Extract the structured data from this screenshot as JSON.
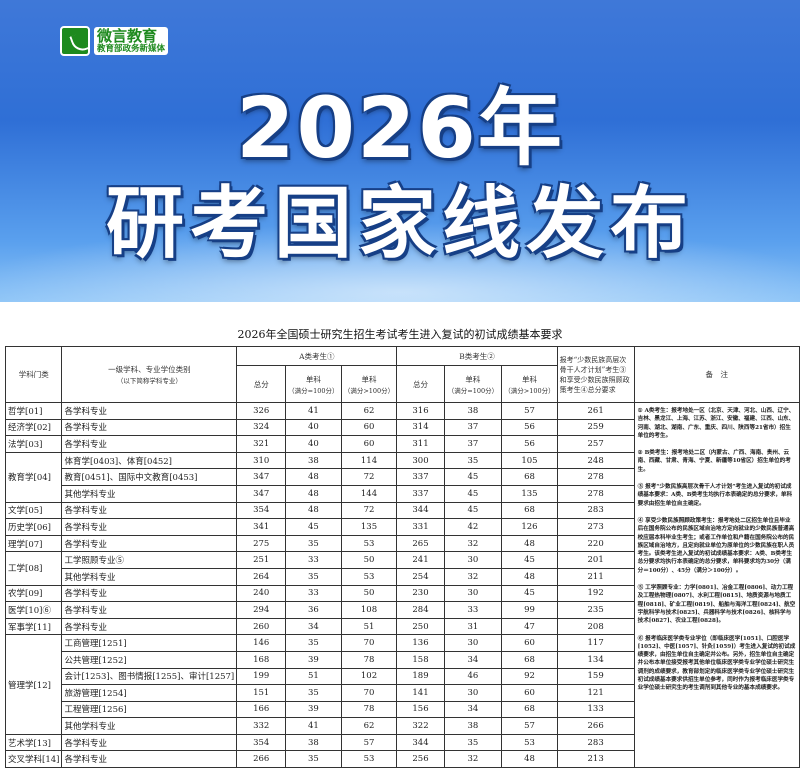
{
  "banner": {
    "logo_main": "微言教育",
    "logo_sub": "教育部政务新媒体",
    "headline_1": "2026年",
    "headline_2": "研考国家线发布",
    "colors": {
      "banner": "#2f6fd6",
      "logo": "#1e8a1e"
    }
  },
  "table": {
    "title": "2026年全国硕士研究生招生考试考生进入复试的初试成绩基本要求",
    "headers": {
      "category": "学科门类",
      "subject": "一级学科、专业学位类别",
      "subject_sub": "（以下简称学科专业）",
      "a_group": "A类考生①",
      "b_group": "B类考生②",
      "total": "总分",
      "single": "单科",
      "single_eq": "（满分=100分）",
      "single_gt": "（满分>100分）",
      "minority": "报考“少数民族高层次骨干人才计划”考生③和享受少数民族照顾政策考生④总分要求",
      "notes": "备　注"
    },
    "rows": [
      {
        "category": "哲学[01]",
        "subject": "各学科专业",
        "a": [
          326,
          41,
          62
        ],
        "b": [
          316,
          38,
          57
        ],
        "m": 261
      },
      {
        "category": "经济学[02]",
        "subject": "各学科专业",
        "a": [
          324,
          40,
          60
        ],
        "b": [
          314,
          37,
          56
        ],
        "m": 259
      },
      {
        "category": "法学[03]",
        "subject": "各学科专业",
        "a": [
          321,
          40,
          60
        ],
        "b": [
          311,
          37,
          56
        ],
        "m": 257
      },
      {
        "category": "教育学[04]",
        "subject": "体育学[0403]、体育[0452]",
        "a": [
          310,
          38,
          114
        ],
        "b": [
          300,
          35,
          105
        ],
        "m": 248
      },
      {
        "category": "",
        "subject": "教育[0451]、国际中文教育[0453]",
        "a": [
          347,
          48,
          72
        ],
        "b": [
          337,
          45,
          68
        ],
        "m": 278
      },
      {
        "category": "",
        "subject": "其他学科专业",
        "a": [
          347,
          48,
          144
        ],
        "b": [
          337,
          45,
          135
        ],
        "m": 278
      },
      {
        "category": "文学[05]",
        "subject": "各学科专业",
        "a": [
          354,
          48,
          72
        ],
        "b": [
          344,
          45,
          68
        ],
        "m": 283
      },
      {
        "category": "历史学[06]",
        "subject": "各学科专业",
        "a": [
          341,
          45,
          135
        ],
        "b": [
          331,
          42,
          126
        ],
        "m": 273
      },
      {
        "category": "理学[07]",
        "subject": "各学科专业",
        "a": [
          275,
          35,
          53
        ],
        "b": [
          265,
          32,
          48
        ],
        "m": 220
      },
      {
        "category": "工学[08]",
        "subject": "工学照顾专业⑤",
        "a": [
          251,
          33,
          50
        ],
        "b": [
          241,
          30,
          45
        ],
        "m": 201
      },
      {
        "category": "",
        "subject": "其他学科专业",
        "a": [
          264,
          35,
          53
        ],
        "b": [
          254,
          32,
          48
        ],
        "m": 211
      },
      {
        "category": "农学[09]",
        "subject": "各学科专业",
        "a": [
          240,
          33,
          50
        ],
        "b": [
          230,
          30,
          45
        ],
        "m": 192
      },
      {
        "category": "医学[10]⑥",
        "subject": "各学科专业",
        "a": [
          294,
          36,
          108
        ],
        "b": [
          284,
          33,
          99
        ],
        "m": 235
      },
      {
        "category": "军事学[11]",
        "subject": "各学科专业",
        "a": [
          260,
          34,
          51
        ],
        "b": [
          250,
          31,
          47
        ],
        "m": 208
      },
      {
        "category": "管理学[12]",
        "subject": "工商管理[1251]",
        "a": [
          146,
          35,
          70
        ],
        "b": [
          136,
          30,
          60
        ],
        "m": 117
      },
      {
        "category": "",
        "subject": "公共管理[1252]",
        "a": [
          168,
          39,
          78
        ],
        "b": [
          158,
          34,
          68
        ],
        "m": 134
      },
      {
        "category": "",
        "subject": "会计[1253]、图书情报[1255]、审计[1257]",
        "a": [
          199,
          51,
          102
        ],
        "b": [
          189,
          46,
          92
        ],
        "m": 159
      },
      {
        "category": "",
        "subject": "旅游管理[1254]",
        "a": [
          151,
          35,
          70
        ],
        "b": [
          141,
          30,
          60
        ],
        "m": 121
      },
      {
        "category": "",
        "subject": "工程管理[1256]",
        "a": [
          166,
          39,
          78
        ],
        "b": [
          156,
          34,
          68
        ],
        "m": 133
      },
      {
        "category": "",
        "subject": "其他学科专业",
        "a": [
          332,
          41,
          62
        ],
        "b": [
          322,
          38,
          57
        ],
        "m": 266
      },
      {
        "category": "艺术学[13]",
        "subject": "各学科专业",
        "a": [
          354,
          38,
          57
        ],
        "b": [
          344,
          35,
          53
        ],
        "m": 283
      },
      {
        "category": "交叉学科[14]",
        "subject": "各学科专业",
        "a": [
          266,
          35,
          53
        ],
        "b": [
          256,
          32,
          48
        ],
        "m": 213
      }
    ],
    "notes": [
      "① A类考生：报考地处一区（北京、天津、河北、山西、辽宁、吉林、黑龙江、上海、江苏、浙江、安徽、福建、江西、山东、河南、湖北、湖南、广东、重庆、四川、陕西等21省市）招生单位的考生。",
      "② B类考生：报考地处二区（内蒙古、广西、海南、贵州、云南、西藏、甘肃、青海、宁夏、新疆等10省区）招生单位的考生。",
      "③ 报考“少数民族高层次骨干人才计划”考生进入复试的初试成绩基本要求：A类、B类考生均执行本表确定的总分要求，单科要求由招生单位自主确定。",
      "④ 享受少数民族照顾政策考生：报考地处二区招生单位且毕业后在国务院公布的民族区域自治地方定向就业的少数民族普通高校应届本科毕业生考生；或者工作单位和户籍在国务院公布的民族区域自治地方，且定向就业单位为原单位的少数民族在职人员考生。该类考生进入复试的初试成绩基本要求：A类、B类考生总分要求均执行本表确定的总分要求，单科要求均为30分（满分＝100分）、45分（满分＞100分）。",
      "⑤ 工学照顾专业：力学[0801]、冶金工程[0806]、动力工程及工程热物理[0807]、水利工程[0815]、地质资源与地质工程[0818]、矿业工程[0819]、船舶与海洋工程[0824]、航空宇航科学与技术[0825]、兵器科学与技术[0826]、核科学与技术[0827]、农业工程[0828]。",
      "⑥ 报考临床医学类专业学位（即临床医学[1051]、口腔医学[1052]、中医[1057]、针灸[1059]）考生进入复试的初试成绩要求，由招生单位自主确定并公布。另外，招生单位自主确定并公布本单位接受报考其他单位临床医学类专业学位硕士研究生调剂的成绩要求，教育部划定的临床医学类专业学位硕士研究生初试成绩基本要求供招生单位参考，同时作为报考临床医学类专业学位硕士研究生的考生调剂到其他专业的基本成绩要求。"
    ]
  }
}
